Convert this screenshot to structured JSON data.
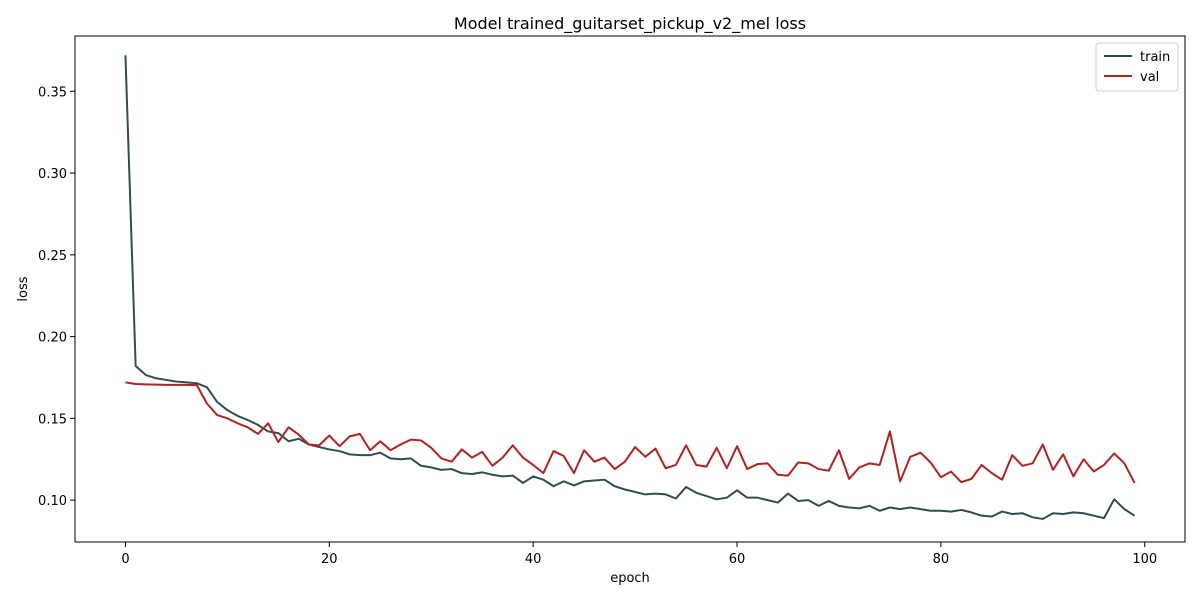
{
  "chart_data": {
    "type": "line",
    "title": "Model trained_guitarset_pickup_v2_mel loss",
    "xlabel": "epoch",
    "ylabel": "loss",
    "xlim": [
      -4.95,
      103.95
    ],
    "ylim": [
      0.0744,
      0.3838
    ],
    "xticks": [
      0,
      20,
      40,
      60,
      80,
      100
    ],
    "xtick_labels": [
      "0",
      "20",
      "40",
      "60",
      "80",
      "100"
    ],
    "yticks": [
      0.1,
      0.15,
      0.2,
      0.25,
      0.3,
      0.35
    ],
    "ytick_labels": [
      "0.10",
      "0.15",
      "0.20",
      "0.25",
      "0.30",
      "0.35"
    ],
    "grid": false,
    "legend_position": "top-right",
    "series": [
      {
        "name": "train",
        "color": "#2f4f4f",
        "values": [
          0.372,
          0.182,
          0.1765,
          0.1745,
          0.1735,
          0.1725,
          0.172,
          0.1715,
          0.169,
          0.16,
          0.155,
          0.1515,
          0.149,
          0.146,
          0.142,
          0.141,
          0.136,
          0.1375,
          0.134,
          0.1325,
          0.131,
          0.13,
          0.128,
          0.1275,
          0.1275,
          0.129,
          0.1255,
          0.125,
          0.1255,
          0.121,
          0.12,
          0.1185,
          0.119,
          0.1165,
          0.116,
          0.117,
          0.1155,
          0.1145,
          0.115,
          0.1105,
          0.1145,
          0.1125,
          0.1085,
          0.1115,
          0.109,
          0.1115,
          0.112,
          0.1125,
          0.1085,
          0.1065,
          0.105,
          0.1035,
          0.104,
          0.1035,
          0.101,
          0.108,
          0.1045,
          0.1025,
          0.1005,
          0.1015,
          0.106,
          0.1015,
          0.1015,
          0.1,
          0.0985,
          0.104,
          0.0995,
          0.1,
          0.0965,
          0.0995,
          0.0965,
          0.0955,
          0.095,
          0.0965,
          0.0935,
          0.0955,
          0.0945,
          0.0955,
          0.0945,
          0.0935,
          0.0935,
          0.093,
          0.094,
          0.0925,
          0.0905,
          0.09,
          0.093,
          0.0915,
          0.092,
          0.0895,
          0.0885,
          0.092,
          0.0915,
          0.0925,
          0.092,
          0.0905,
          0.089,
          0.1005,
          0.0945,
          0.0905
        ]
      },
      {
        "name": "val",
        "color": "#b22222",
        "values": [
          0.172,
          0.171,
          0.1708,
          0.1706,
          0.1705,
          0.1705,
          0.1705,
          0.1703,
          0.159,
          0.152,
          0.15,
          0.147,
          0.1445,
          0.1405,
          0.147,
          0.1355,
          0.1445,
          0.14,
          0.134,
          0.1335,
          0.1395,
          0.133,
          0.139,
          0.1405,
          0.1305,
          0.136,
          0.1305,
          0.134,
          0.137,
          0.1365,
          0.132,
          0.1255,
          0.1235,
          0.131,
          0.126,
          0.1295,
          0.121,
          0.126,
          0.1335,
          0.126,
          0.1215,
          0.1165,
          0.13,
          0.127,
          0.1165,
          0.1305,
          0.1235,
          0.126,
          0.119,
          0.1235,
          0.1325,
          0.1265,
          0.1315,
          0.1195,
          0.1215,
          0.1335,
          0.1215,
          0.1205,
          0.132,
          0.1195,
          0.133,
          0.119,
          0.122,
          0.1225,
          0.1155,
          0.115,
          0.123,
          0.1225,
          0.119,
          0.118,
          0.1305,
          0.113,
          0.12,
          0.1225,
          0.1215,
          0.142,
          0.1115,
          0.1265,
          0.129,
          0.123,
          0.114,
          0.1175,
          0.111,
          0.113,
          0.1215,
          0.1165,
          0.1125,
          0.1275,
          0.121,
          0.1225,
          0.134,
          0.1185,
          0.128,
          0.1145,
          0.125,
          0.1175,
          0.1215,
          0.1285,
          0.1225,
          0.1105
        ]
      }
    ]
  }
}
